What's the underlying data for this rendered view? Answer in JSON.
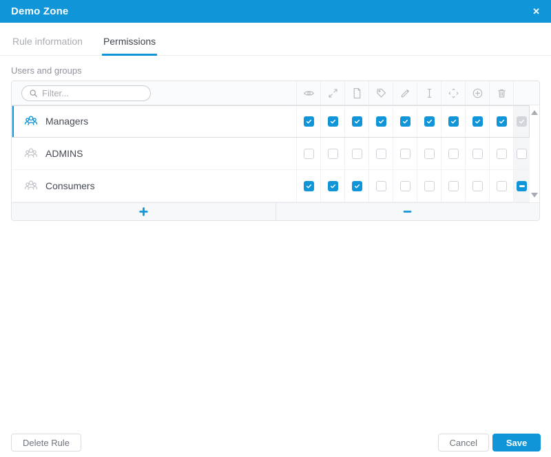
{
  "colors": {
    "accent": "#0f95d8",
    "header_bg": "#0f95d8"
  },
  "dialog": {
    "title": "Demo Zone",
    "close_icon": "✕",
    "tabs": [
      {
        "id": "rule-information",
        "label": "Rule information",
        "active": false
      },
      {
        "id": "permissions",
        "label": "Permissions",
        "active": true
      }
    ],
    "section_label": "Users and groups"
  },
  "table": {
    "filter_placeholder": "Filter...",
    "columns": [
      "eye",
      "expand",
      "document",
      "tag",
      "pencil",
      "text-cursor",
      "move",
      "add-circle",
      "trash"
    ],
    "rows": [
      {
        "name": "Managers",
        "selected": true,
        "permissions": [
          true,
          true,
          true,
          true,
          true,
          true,
          true,
          true,
          true
        ],
        "row_checkbox": "checked-disabled"
      },
      {
        "name": "ADMINS",
        "selected": false,
        "permissions": [
          false,
          false,
          false,
          false,
          false,
          false,
          false,
          false,
          false
        ],
        "row_checkbox": "unchecked"
      },
      {
        "name": "Consumers",
        "selected": false,
        "permissions": [
          true,
          true,
          true,
          false,
          false,
          false,
          false,
          false,
          false
        ],
        "row_checkbox": "indeterminate"
      }
    ],
    "add_button": "+",
    "remove_button": "−"
  },
  "actions": {
    "delete_label": "Delete Rule",
    "cancel_label": "Cancel",
    "save_label": "Save"
  }
}
